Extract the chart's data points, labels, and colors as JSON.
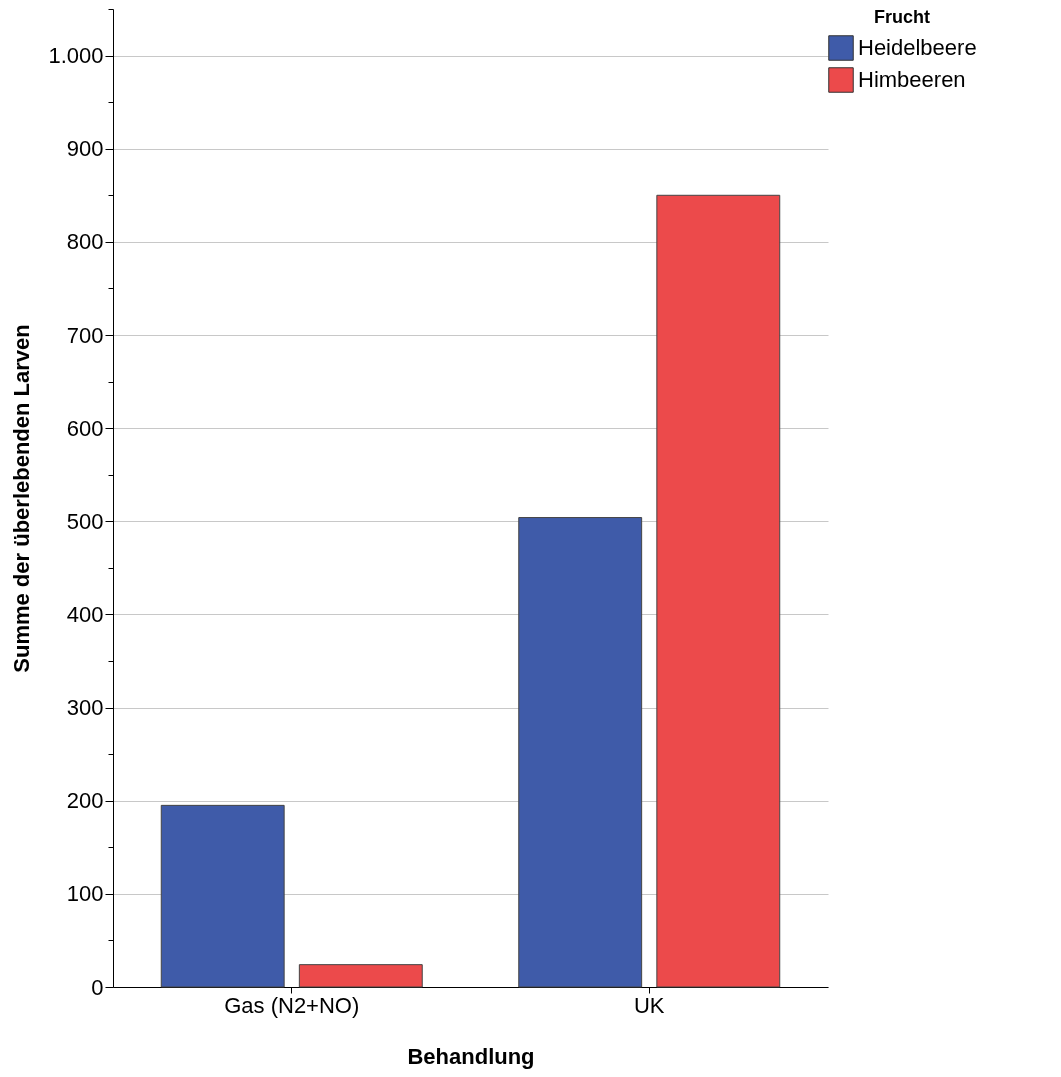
{
  "chart_data": {
    "type": "bar",
    "xlabel": "Behandlung",
    "ylabel": "Summe der überlebenden Larven",
    "legend_title": "Frucht",
    "categories": [
      "Gas (N2+NO)",
      "UK"
    ],
    "series": [
      {
        "name": "Heidelbeere",
        "color": "#3f5ba9",
        "values": [
          195,
          504
        ]
      },
      {
        "name": "Himbeeren",
        "color": "#ec4a4b",
        "values": [
          24,
          850
        ]
      }
    ],
    "ylim": [
      0,
      1050
    ],
    "yticks": [
      0,
      {
        "value": 50,
        "label": null
      },
      100,
      {
        "value": 150,
        "label": null
      },
      200,
      {
        "value": 250,
        "label": null
      },
      300,
      {
        "value": 350,
        "label": null
      },
      400,
      {
        "value": 450,
        "label": null
      },
      500,
      {
        "value": 550,
        "label": null
      },
      600,
      {
        "value": 650,
        "label": null
      },
      700,
      {
        "value": 750,
        "label": null
      },
      800,
      {
        "value": 850,
        "label": null
      },
      900,
      {
        "value": 950,
        "label": null
      },
      {
        "value": 1000,
        "label": "1.000"
      },
      {
        "value": 1050,
        "label": null
      }
    ],
    "grid": "y",
    "legend": "top right"
  }
}
